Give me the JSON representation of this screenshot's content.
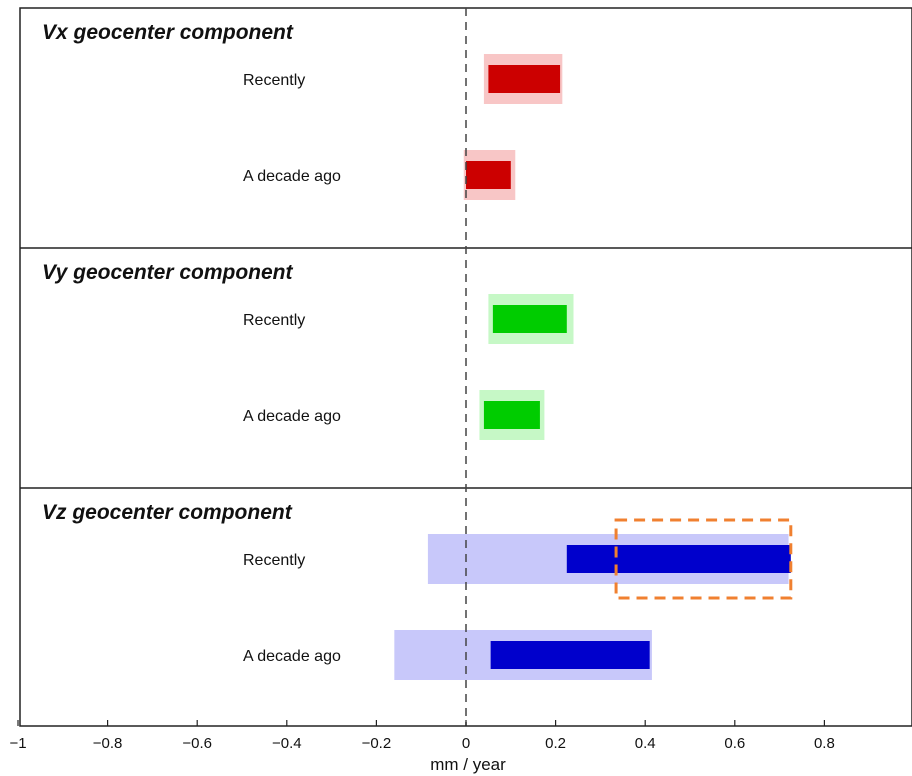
{
  "chart_data": {
    "type": "bar",
    "subtype": "horizontal-range",
    "xlabel": "mm / year",
    "xlim": [
      -1,
      1
    ],
    "xticks": [
      -1,
      -0.8,
      -0.6,
      -0.4,
      -0.2,
      0,
      0.2,
      0.4,
      0.6,
      0.8
    ],
    "tick_labels": [
      "−1",
      "−0.8",
      "−0.6",
      "−0.4",
      "−0.2",
      "0",
      "0.2",
      "0.4",
      "0.6",
      "0.8"
    ],
    "reference_line": {
      "x": 0,
      "style": "dashed"
    },
    "panels": [
      {
        "title": "Vx geocenter component",
        "dark_color": "#cc0000",
        "light_color": "#f8c6c6",
        "rows": [
          {
            "label": "Recently",
            "inner": [
              0.05,
              0.21
            ],
            "outer": [
              0.04,
              0.215
            ]
          },
          {
            "label": "A decade ago",
            "inner": [
              0.0,
              0.1
            ],
            "outer": [
              -0.005,
              0.11
            ]
          }
        ]
      },
      {
        "title": "Vy geocenter component",
        "dark_color": "#00cc00",
        "light_color": "#c6f8c6",
        "rows": [
          {
            "label": "Recently",
            "inner": [
              0.06,
              0.225
            ],
            "outer": [
              0.05,
              0.24
            ]
          },
          {
            "label": "A decade ago",
            "inner": [
              0.04,
              0.165
            ],
            "outer": [
              0.03,
              0.175
            ]
          }
        ]
      },
      {
        "title": "Vz geocenter component",
        "dark_color": "#0000cc",
        "light_color": "#c8c8fa",
        "rows": [
          {
            "label": "Recently",
            "inner": [
              0.225,
              0.725
            ],
            "outer": [
              -0.085,
              0.72
            ]
          },
          {
            "label": "A decade ago",
            "inner": [
              0.055,
              0.41
            ],
            "outer": [
              -0.16,
              0.415
            ]
          }
        ],
        "highlight_box": {
          "x": [
            0.335,
            0.725
          ],
          "row": "Recently",
          "color": "#f08030"
        }
      }
    ]
  }
}
